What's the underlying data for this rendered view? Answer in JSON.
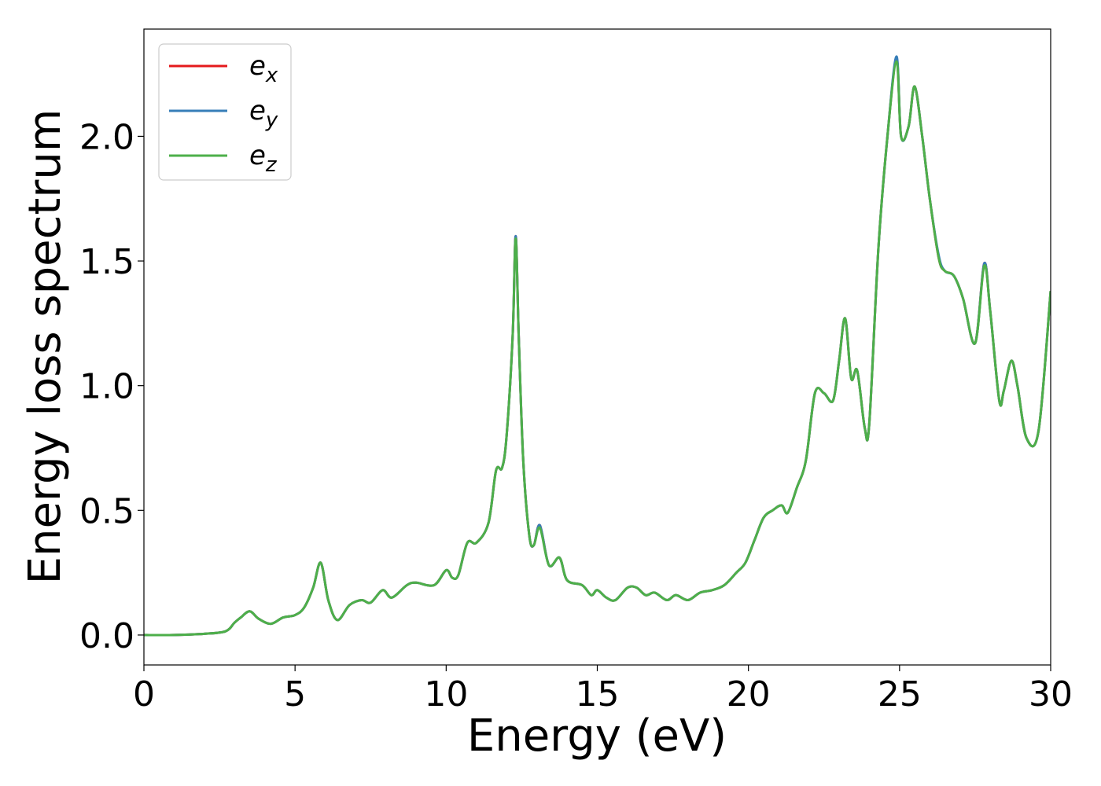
{
  "chart_data": {
    "type": "line",
    "title": "",
    "xlabel": "Energy (eV)",
    "ylabel": "Energy loss spectrum",
    "xlim": [
      0,
      30
    ],
    "ylim": [
      -0.12,
      2.43
    ],
    "xticks": [
      0,
      5,
      10,
      15,
      20,
      25,
      30
    ],
    "xtick_labels": [
      "0",
      "5",
      "10",
      "15",
      "20",
      "25",
      "30"
    ],
    "yticks": [
      0.0,
      0.5,
      1.0,
      1.5,
      2.0
    ],
    "ytick_labels": [
      "0.0",
      "0.5",
      "1.0",
      "1.5",
      "2.0"
    ],
    "grid": false,
    "legend_position": "top-left",
    "x": [
      0,
      1,
      2,
      2.7,
      3.0,
      3.2,
      3.5,
      3.8,
      4.2,
      4.6,
      5.0,
      5.3,
      5.6,
      5.85,
      6.1,
      6.4,
      6.8,
      7.2,
      7.5,
      7.9,
      8.2,
      8.7,
      9.0,
      9.6,
      10.0,
      10.2,
      10.4,
      10.7,
      11.0,
      11.4,
      11.65,
      11.85,
      12.0,
      12.2,
      12.3,
      12.4,
      12.55,
      12.75,
      12.9,
      13.1,
      13.4,
      13.75,
      14.0,
      14.5,
      14.8,
      15.0,
      15.3,
      15.6,
      16.0,
      16.3,
      16.6,
      16.9,
      17.3,
      17.6,
      18.0,
      18.4,
      18.8,
      19.2,
      19.6,
      19.9,
      20.2,
      20.5,
      20.8,
      21.1,
      21.3,
      21.6,
      21.9,
      22.2,
      22.5,
      22.8,
      23.0,
      23.2,
      23.4,
      23.6,
      23.85,
      24.0,
      24.3,
      24.6,
      24.9,
      25.05,
      25.3,
      25.5,
      25.75,
      26.0,
      26.3,
      26.5,
      26.8,
      27.1,
      27.5,
      27.8,
      28.0,
      28.3,
      28.45,
      28.7,
      28.9,
      29.2,
      29.6,
      30.0
    ],
    "series": [
      {
        "name": "e_x",
        "color": "#e41a1c",
        "y": [
          0.0,
          0.0,
          0.005,
          0.015,
          0.05,
          0.07,
          0.095,
          0.065,
          0.045,
          0.07,
          0.08,
          0.11,
          0.19,
          0.29,
          0.14,
          0.06,
          0.12,
          0.14,
          0.13,
          0.18,
          0.15,
          0.2,
          0.21,
          0.2,
          0.26,
          0.23,
          0.24,
          0.37,
          0.37,
          0.45,
          0.66,
          0.67,
          0.8,
          1.2,
          1.6,
          1.2,
          0.7,
          0.4,
          0.36,
          0.44,
          0.28,
          0.31,
          0.22,
          0.2,
          0.16,
          0.18,
          0.15,
          0.14,
          0.19,
          0.19,
          0.16,
          0.17,
          0.14,
          0.16,
          0.14,
          0.17,
          0.18,
          0.2,
          0.25,
          0.29,
          0.38,
          0.47,
          0.5,
          0.52,
          0.49,
          0.59,
          0.7,
          0.97,
          0.97,
          0.94,
          1.1,
          1.27,
          1.03,
          1.06,
          0.83,
          0.85,
          1.55,
          2.0,
          2.31,
          2.0,
          2.04,
          2.2,
          2.0,
          1.75,
          1.51,
          1.46,
          1.44,
          1.35,
          1.17,
          1.49,
          1.3,
          0.94,
          0.98,
          1.1,
          1.0,
          0.79,
          0.82,
          1.38
        ]
      },
      {
        "name": "e_y",
        "color": "#377eb8",
        "y": [
          0.0,
          0.0,
          0.005,
          0.015,
          0.05,
          0.07,
          0.095,
          0.065,
          0.045,
          0.07,
          0.08,
          0.11,
          0.19,
          0.29,
          0.14,
          0.06,
          0.12,
          0.14,
          0.13,
          0.18,
          0.15,
          0.2,
          0.21,
          0.2,
          0.26,
          0.23,
          0.24,
          0.37,
          0.37,
          0.45,
          0.66,
          0.67,
          0.8,
          1.2,
          1.6,
          1.2,
          0.7,
          0.4,
          0.36,
          0.44,
          0.28,
          0.31,
          0.22,
          0.2,
          0.16,
          0.18,
          0.15,
          0.14,
          0.19,
          0.19,
          0.16,
          0.17,
          0.14,
          0.16,
          0.14,
          0.17,
          0.18,
          0.2,
          0.25,
          0.29,
          0.38,
          0.47,
          0.5,
          0.52,
          0.49,
          0.59,
          0.7,
          0.97,
          0.97,
          0.94,
          1.1,
          1.27,
          1.03,
          1.06,
          0.83,
          0.85,
          1.55,
          2.0,
          2.32,
          2.0,
          2.04,
          2.2,
          2.0,
          1.75,
          1.52,
          1.46,
          1.44,
          1.35,
          1.17,
          1.49,
          1.3,
          0.94,
          0.98,
          1.1,
          1.0,
          0.79,
          0.82,
          1.38
        ]
      },
      {
        "name": "e_z",
        "color": "#4daf4a",
        "y": [
          0.0,
          0.0,
          0.005,
          0.015,
          0.05,
          0.07,
          0.095,
          0.065,
          0.045,
          0.07,
          0.08,
          0.11,
          0.19,
          0.29,
          0.14,
          0.06,
          0.12,
          0.14,
          0.13,
          0.18,
          0.15,
          0.2,
          0.21,
          0.2,
          0.26,
          0.23,
          0.24,
          0.37,
          0.37,
          0.45,
          0.66,
          0.67,
          0.8,
          1.2,
          1.59,
          1.2,
          0.7,
          0.4,
          0.36,
          0.43,
          0.28,
          0.31,
          0.22,
          0.2,
          0.16,
          0.18,
          0.15,
          0.14,
          0.19,
          0.19,
          0.16,
          0.17,
          0.14,
          0.16,
          0.14,
          0.17,
          0.18,
          0.2,
          0.25,
          0.29,
          0.38,
          0.47,
          0.5,
          0.52,
          0.49,
          0.59,
          0.7,
          0.97,
          0.97,
          0.94,
          1.1,
          1.27,
          1.03,
          1.06,
          0.83,
          0.85,
          1.55,
          2.0,
          2.3,
          2.0,
          2.04,
          2.2,
          2.0,
          1.75,
          1.51,
          1.46,
          1.44,
          1.35,
          1.17,
          1.48,
          1.3,
          0.94,
          0.98,
          1.1,
          1.0,
          0.79,
          0.82,
          1.38
        ]
      }
    ]
  }
}
